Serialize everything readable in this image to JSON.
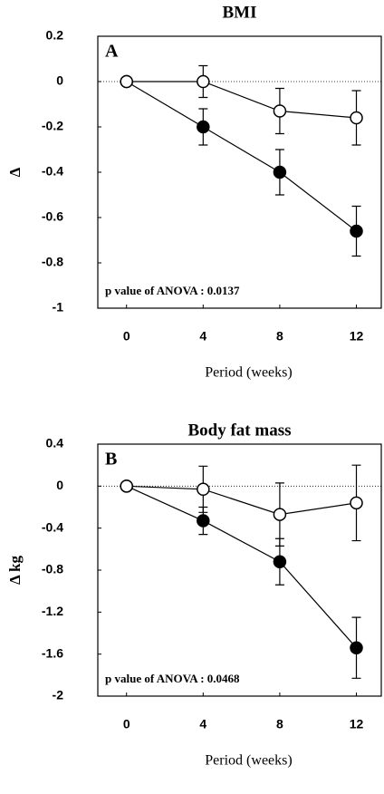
{
  "chart_data": [
    {
      "type": "line",
      "title": "BMI",
      "panel_label": "A",
      "ylabel": "Δ",
      "xlabel": "Period (weeks)",
      "annotation": "p value of ANOVA : 0.0137",
      "x": [
        0,
        4,
        8,
        12
      ],
      "xlim": [
        -1.5,
        13.3
      ],
      "xticks": [
        0,
        4,
        8,
        12
      ],
      "ylim": [
        -1,
        0.2
      ],
      "yticks": [
        0.2,
        0,
        -0.2,
        -0.4,
        -0.6,
        -0.8,
        -1
      ],
      "series": [
        {
          "color": "#000000",
          "marker": "filled",
          "values": [
            0,
            -0.2,
            -0.4,
            -0.66
          ],
          "errors": [
            0,
            0.08,
            0.1,
            0.11
          ]
        },
        {
          "color": "#000000",
          "marker": "open",
          "values": [
            0,
            0,
            -0.13,
            -0.16
          ],
          "errors": [
            0,
            0.07,
            0.1,
            0.12
          ]
        }
      ]
    },
    {
      "type": "line",
      "title": "Body fat mass",
      "panel_label": "B",
      "ylabel": "Δ kg",
      "xlabel": "Period (weeks)",
      "annotation": "p value of ANOVA : 0.0468",
      "x": [
        0,
        4,
        8,
        12
      ],
      "xlim": [
        -1.5,
        13.3
      ],
      "xticks": [
        0,
        4,
        8,
        12
      ],
      "ylim": [
        -2,
        0.4
      ],
      "yticks": [
        0.4,
        0,
        -0.4,
        -0.8,
        -1.2,
        -1.6,
        -2
      ],
      "series": [
        {
          "color": "#000000",
          "marker": "filled",
          "values": [
            0,
            -0.33,
            -0.72,
            -1.54
          ],
          "errors": [
            0,
            0.13,
            0.22,
            0.29
          ]
        },
        {
          "color": "#000000",
          "marker": "open",
          "values": [
            0,
            -0.03,
            -0.27,
            -0.16
          ],
          "errors": [
            0,
            0.22,
            0.3,
            0.36
          ]
        }
      ]
    }
  ]
}
